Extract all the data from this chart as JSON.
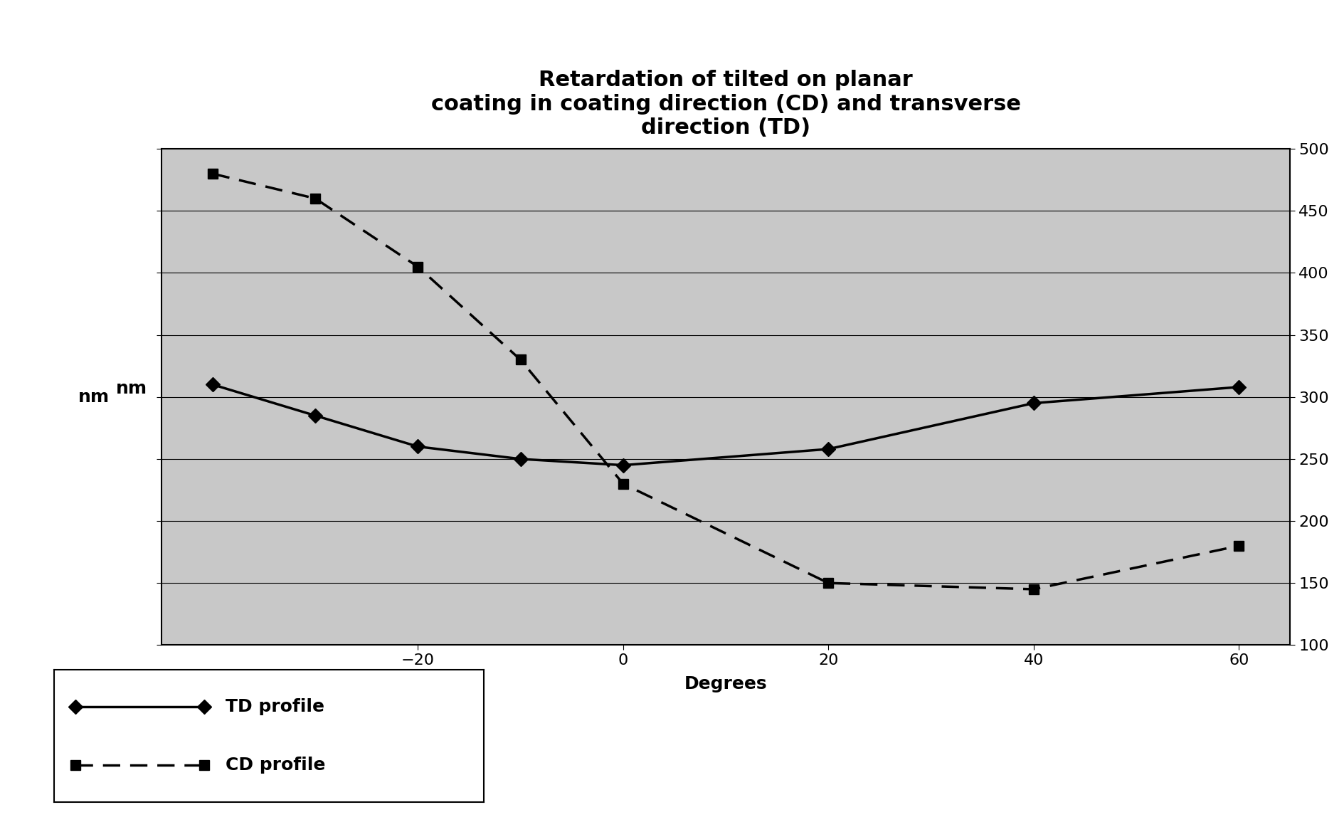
{
  "title": "Retardation of tilted on planar\ncoating in coating direction (CD) and transverse\ndirection (TD)",
  "xlabel": "Degrees",
  "ylabel": "nm",
  "ylim": [
    100,
    500
  ],
  "yticks": [
    100,
    150,
    200,
    250,
    300,
    350,
    400,
    450,
    500
  ],
  "xlim": [
    -45,
    65
  ],
  "xticks": [
    -20,
    0,
    20,
    40,
    60
  ],
  "td_x": [
    -40,
    -30,
    -20,
    -10,
    0,
    20,
    40,
    60
  ],
  "td_y": [
    310,
    285,
    260,
    250,
    245,
    258,
    295,
    308
  ],
  "cd_x": [
    -40,
    -30,
    -20,
    -10,
    0,
    20,
    40,
    60
  ],
  "cd_y": [
    480,
    460,
    405,
    330,
    230,
    150,
    145,
    180
  ],
  "td_color": "#000000",
  "cd_color": "#000000",
  "figure_bg_color": "#ffffff",
  "plot_bg_color": "#c8c8c8",
  "title_fontsize": 22,
  "axis_label_fontsize": 18,
  "tick_fontsize": 16,
  "legend_fontsize": 18
}
